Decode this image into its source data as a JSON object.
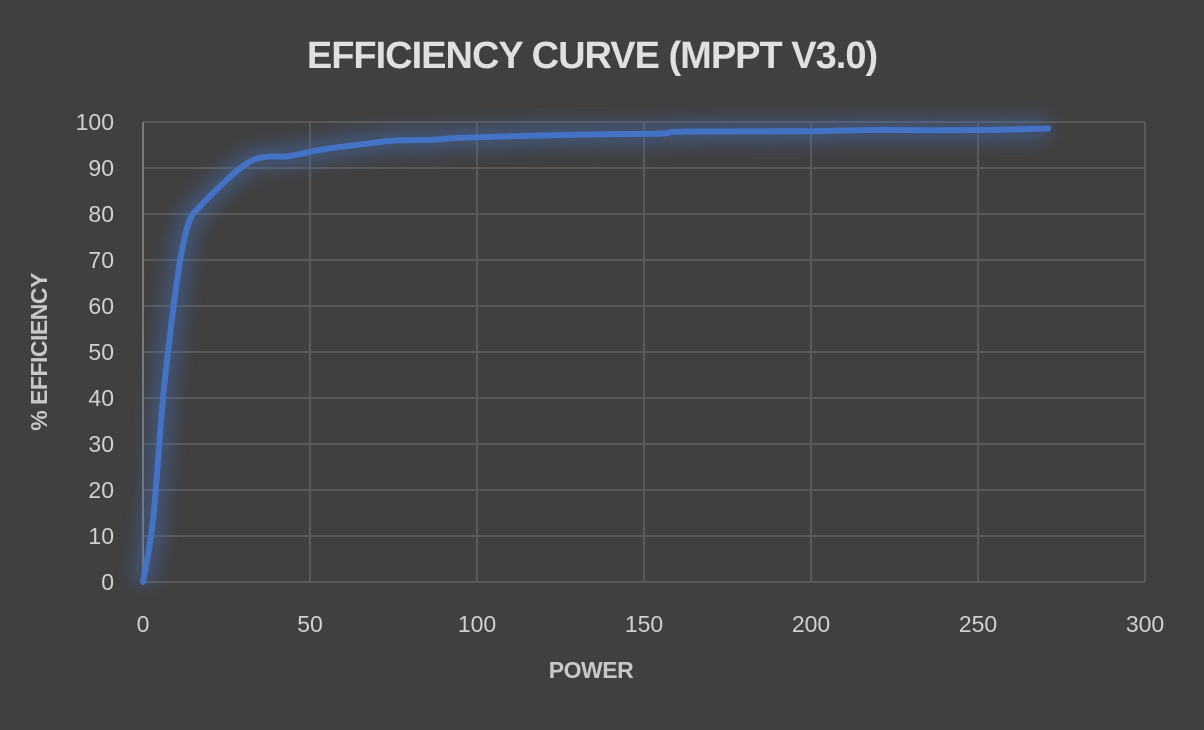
{
  "chart_data": {
    "type": "line",
    "title": "EFFICIENCY CURVE (MPPT V3.0)",
    "xlabel": "POWER",
    "ylabel": "% EFFICIENCY",
    "xlim": [
      0,
      300
    ],
    "ylim": [
      0,
      100
    ],
    "xticks": [
      0,
      50,
      100,
      150,
      200,
      250,
      300
    ],
    "yticks": [
      0,
      10,
      20,
      30,
      40,
      50,
      60,
      70,
      80,
      90,
      100
    ],
    "grid": true,
    "smooth": true,
    "colors": {
      "background": "#404040",
      "grid": "#595959",
      "line": "#4472C4",
      "text": "#d0d0d0"
    },
    "series": [
      {
        "x": [
          0,
          3,
          6,
          9,
          11.5,
          14,
          17,
          23,
          28,
          33,
          38,
          43,
          50,
          56,
          66,
          76,
          86,
          96,
          116,
          135,
          155,
          162,
          200,
          220,
          235,
          255,
          271
        ],
        "y": [
          0,
          13.5,
          40,
          59,
          71.5,
          78.7,
          81.6,
          86,
          89.3,
          91.8,
          92.5,
          92.5,
          93.5,
          94.3,
          95.2,
          96,
          96.1,
          96.6,
          97,
          97.3,
          97.5,
          97.9,
          98,
          98.3,
          98.2,
          98.3,
          98.6
        ]
      }
    ]
  }
}
